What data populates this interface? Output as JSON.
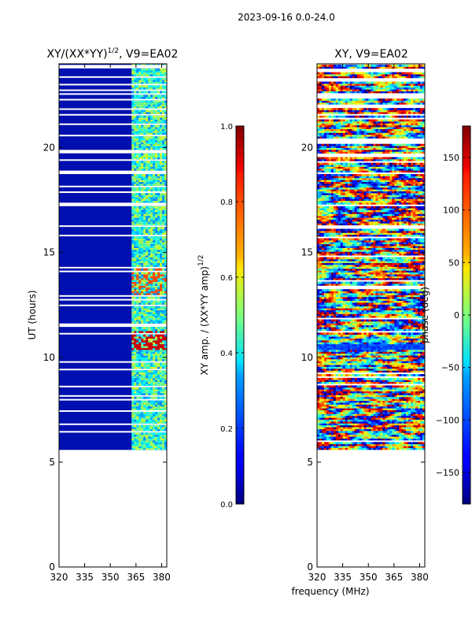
{
  "figure": {
    "suptitle": "2023-09-16 0.0-24.0",
    "xlabel_shared": "frequency (MHz)"
  },
  "chart_data": [
    {
      "type": "heatmap",
      "title_main": "XY/(XX*YY)",
      "title_sup": "1/2",
      "title_tail": ", V9=EA02",
      "ylabel": "UT (hours)",
      "xlim": [
        320,
        383
      ],
      "ylim": [
        0,
        24
      ],
      "xticks": [
        "320",
        "335",
        "350",
        "365",
        "380"
      ],
      "xtick_values": [
        320,
        335,
        350,
        365,
        380
      ],
      "yticks": [
        "0",
        "5",
        "10",
        "15",
        "20"
      ],
      "ytick_values": [
        0,
        5,
        10,
        15,
        20
      ],
      "data_range_hours": [
        5.6,
        24
      ],
      "colorbar": {
        "label_main": "XY amp. / (XX*YY amp)",
        "label_sup": "1/2",
        "range": [
          0.0,
          1.0
        ],
        "ticks": [
          "0.0",
          "0.2",
          "0.4",
          "0.6",
          "0.8",
          "1.0"
        ],
        "tick_values": [
          0.0,
          0.2,
          0.4,
          0.6,
          0.8,
          1.0
        ]
      }
    },
    {
      "type": "heatmap",
      "title": "XY, V9=EA02",
      "ylabel": "",
      "xlim": [
        320,
        383
      ],
      "ylim": [
        0,
        24
      ],
      "xticks": [
        "320",
        "335",
        "350",
        "365",
        "380"
      ],
      "xtick_values": [
        320,
        335,
        350,
        365,
        380
      ],
      "yticks": [
        "0",
        "5",
        "10",
        "15",
        "20"
      ],
      "ytick_values": [
        0,
        5,
        10,
        15,
        20
      ],
      "data_range_hours": [
        5.6,
        24
      ],
      "colorbar": {
        "label": "phase (deg)",
        "range": [
          -180,
          180
        ],
        "ticks": [
          "−150",
          "−100",
          "−50",
          "0",
          "50",
          "100",
          "150"
        ],
        "tick_values": [
          -150,
          -100,
          -50,
          0,
          50,
          100,
          150
        ]
      }
    }
  ]
}
